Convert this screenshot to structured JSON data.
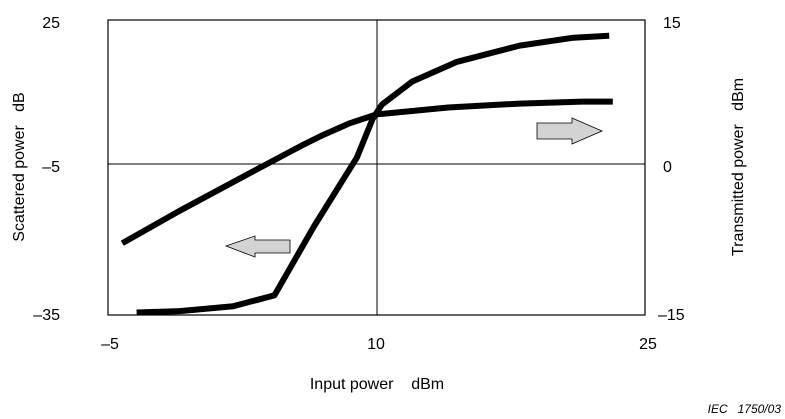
{
  "chart_data": {
    "type": "line",
    "xlabel": "Input power    dBm",
    "ylabel_left": "Scattered power   dB",
    "ylabel_right": "Transmitted power   dBm",
    "reference": "IEC   1750/03",
    "x_ticks": [
      "–5",
      "10",
      "25"
    ],
    "y_left_ticks": [
      "25",
      "–5",
      "–35"
    ],
    "y_right_ticks": [
      "15",
      "0",
      "–15"
    ],
    "xlim": [
      -5,
      25
    ],
    "ylim_left": [
      -35,
      25
    ],
    "ylim_right": [
      -15,
      15
    ],
    "grid": "center cross lines at x=10 and y=-5 (left) / 0 (right)",
    "series": [
      {
        "axis": "left",
        "arrow": "left",
        "points": [
          [
            -3.4,
            -34.5
          ],
          [
            -1,
            -34.2
          ],
          [
            2,
            -33.2
          ],
          [
            4.3,
            -31
          ],
          [
            6.5,
            -17
          ],
          [
            8.9,
            -3
          ],
          [
            9.8,
            5
          ],
          [
            10.3,
            7.8
          ],
          [
            12,
            12.5
          ],
          [
            14.5,
            16.5
          ],
          [
            18,
            19.8
          ],
          [
            21,
            21.4
          ],
          [
            23,
            21.8
          ]
        ]
      },
      {
        "axis": "right",
        "arrow": "right",
        "points": [
          [
            -4.2,
            -7.7
          ],
          [
            -1,
            -4.4
          ],
          [
            3,
            -0.5
          ],
          [
            6,
            2.4
          ],
          [
            7,
            3.3
          ],
          [
            8.5,
            4.5
          ],
          [
            10,
            5.4
          ],
          [
            14,
            6.1
          ],
          [
            18,
            6.5
          ],
          [
            21.5,
            6.7
          ],
          [
            23.2,
            6.7
          ]
        ]
      }
    ]
  }
}
